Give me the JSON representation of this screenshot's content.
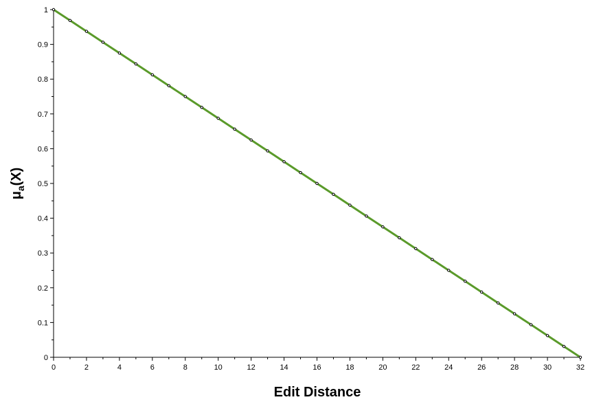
{
  "chart_data": {
    "type": "line",
    "title": "",
    "xlabel": "Edit Distance",
    "ylabel_main": "μ",
    "ylabel_sub": "a",
    "ylabel_suffix": "(X)",
    "xlim": [
      0,
      32
    ],
    "ylim": [
      0,
      1
    ],
    "x_ticks": [
      0,
      2,
      4,
      6,
      8,
      10,
      12,
      14,
      16,
      18,
      20,
      22,
      24,
      26,
      28,
      30,
      32
    ],
    "x_tick_labels": [
      "0",
      "2",
      "4",
      "6",
      "8",
      "10",
      "12",
      "14",
      "16",
      "18",
      "20",
      "22",
      "24",
      "26",
      "28",
      "30",
      "32"
    ],
    "y_ticks": [
      0,
      0.1,
      0.2,
      0.3,
      0.4,
      0.5,
      0.6,
      0.7,
      0.8,
      0.9,
      1
    ],
    "y_tick_labels": [
      "0",
      "0.1",
      "0.2",
      "0.3",
      "0.4",
      "0.5",
      "0.6",
      "0.7",
      "0.8",
      "0.9",
      "1"
    ],
    "grid": false,
    "series": [
      {
        "x": [
          0,
          1,
          2,
          3,
          4,
          5,
          6,
          7,
          8,
          9,
          10,
          11,
          12,
          13,
          14,
          15,
          16,
          17,
          18,
          19,
          20,
          21,
          22,
          23,
          24,
          25,
          26,
          27,
          28,
          29,
          30,
          31,
          32
        ],
        "y": [
          1,
          0.96875,
          0.9375,
          0.90625,
          0.875,
          0.84375,
          0.8125,
          0.78125,
          0.75,
          0.71875,
          0.6875,
          0.65625,
          0.625,
          0.59375,
          0.5625,
          0.53125,
          0.5,
          0.46875,
          0.4375,
          0.40625,
          0.375,
          0.34375,
          0.3125,
          0.28125,
          0.25,
          0.21875,
          0.1875,
          0.15625,
          0.125,
          0.09375,
          0.0625,
          0.03125,
          0
        ],
        "line_color": "#5a9a2a",
        "marker_color": "#000000",
        "marker": "open-circle"
      }
    ]
  }
}
